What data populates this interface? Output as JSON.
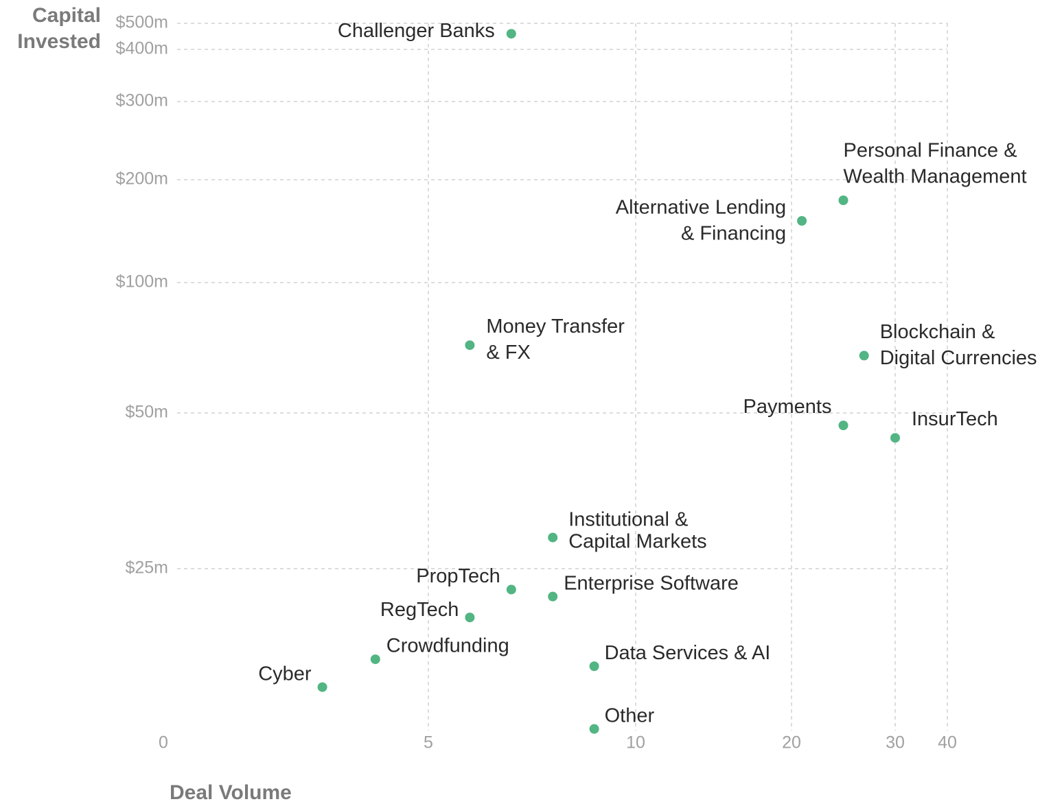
{
  "chart_data": {
    "type": "scatter",
    "y_label": [
      "Capital",
      "Invested"
    ],
    "x_label": "Deal Volume",
    "xlim": [
      0,
      40
    ],
    "xticks": [
      0,
      5,
      10,
      20,
      30,
      40
    ],
    "ylim": [
      0,
      500
    ],
    "yticks": [
      {
        "value": 500,
        "label": "$500m"
      },
      {
        "value": 400,
        "label": "$400m"
      },
      {
        "value": 300,
        "label": "$300m"
      },
      {
        "value": 200,
        "label": "$200m"
      },
      {
        "value": 100,
        "label": "$100m"
      },
      {
        "value": 50,
        "label": "$50m"
      },
      {
        "value": 25,
        "label": "$25m"
      }
    ],
    "grid": true,
    "color": "#52b583",
    "labels": [
      [
        "Challenger Banks"
      ],
      [
        "Personal Finance &",
        "Wealth Management"
      ],
      [
        "Alternative Lending",
        "& Financing"
      ],
      [
        "Money Transfer",
        "& FX"
      ],
      [
        "Blockchain &",
        "Digital Currencies"
      ],
      [
        "Payments"
      ],
      [
        "InsurTech"
      ],
      [
        "Institutional &",
        "Capital Markets"
      ],
      [
        "PropTech"
      ],
      [
        "Enterprise Software"
      ],
      [
        "RegTech"
      ],
      [
        "Crowdfunding"
      ],
      [
        "Data Services & AI"
      ],
      [
        "Cyber"
      ],
      [
        "Other"
      ]
    ],
    "x": [
      7,
      25,
      21,
      6,
      27,
      25,
      30,
      8,
      7,
      8,
      6,
      4,
      9,
      3,
      9
    ],
    "values": [
      460,
      180,
      160,
      76,
      72,
      48,
      46,
      30,
      22,
      21,
      18,
      12,
      11,
      8,
      2
    ]
  }
}
